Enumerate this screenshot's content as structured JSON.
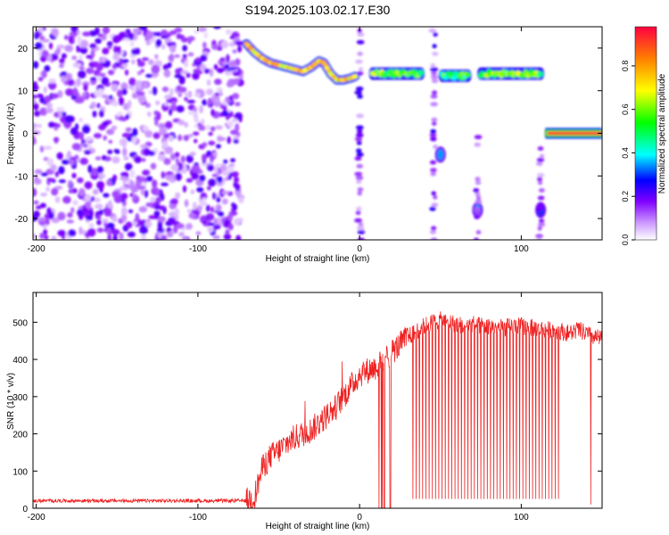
{
  "title": "S194.2025.103.02.17.E30",
  "chart_data": [
    {
      "type": "heatmap",
      "title": "S194.2025.103.02.17.E30",
      "xlabel": "Height of straight line (km)",
      "ylabel": "Frequency (Hz)",
      "xlim": [
        -202,
        150
      ],
      "ylim": [
        -25,
        25
      ],
      "xticks": [
        -200,
        -100,
        0,
        100
      ],
      "yticks": [
        -20,
        -10,
        0,
        10,
        20
      ],
      "colorbar": {
        "label": "Normalized spectral amplitude",
        "range": [
          0,
          0.98
        ],
        "ticks": [
          0.0,
          0.2,
          0.4,
          0.6,
          0.8
        ],
        "colors": [
          "#ffffff",
          "#cc99ff",
          "#8000ff",
          "#0000ff",
          "#00ffff",
          "#00ff00",
          "#ffff00",
          "#ff8000",
          "#ff0040"
        ]
      },
      "features": [
        {
          "name": "noise field",
          "x_range": [
            -202,
            -73
          ],
          "y_range": [
            -25,
            25
          ],
          "amplitude": 0.2
        },
        {
          "name": "ridge",
          "points": [
            [
              -70,
              21
            ],
            [
              -65,
              19
            ],
            [
              -60,
              17.5
            ],
            [
              -55,
              16.5
            ],
            [
              -50,
              16
            ],
            [
              -45,
              15.5
            ],
            [
              -40,
              15
            ],
            [
              -35,
              14.5
            ],
            [
              -30,
              15.5
            ],
            [
              -25,
              17
            ],
            [
              -22,
              16.5
            ],
            [
              -18,
              14
            ],
            [
              -14,
              12.5
            ],
            [
              -10,
              12.5
            ],
            [
              -5,
              13
            ],
            [
              -2,
              13.5
            ]
          ],
          "amplitude": 0.75
        },
        {
          "name": "band",
          "x_range": [
            8,
            38
          ],
          "y": 14,
          "amplitude": 0.6
        },
        {
          "name": "band",
          "x_range": [
            51,
            67
          ],
          "y": 13.5,
          "amplitude": 0.55
        },
        {
          "name": "band",
          "x_range": [
            75,
            112
          ],
          "y": 14,
          "amplitude": 0.6
        },
        {
          "name": "line",
          "x_range": [
            115,
            150
          ],
          "y": 0,
          "amplitude": 0.95
        },
        {
          "name": "blob",
          "x": 50,
          "y": -5,
          "amplitude": 0.35
        },
        {
          "name": "blob",
          "x": 73,
          "y": -18,
          "amplitude": 0.35
        },
        {
          "name": "blob",
          "x": 112,
          "y": -18,
          "amplitude": 0.3
        },
        {
          "name": "streak",
          "x": 0,
          "y_range": [
            -25,
            25
          ],
          "amplitude": 0.2
        },
        {
          "name": "streak",
          "x": 46,
          "y_range": [
            -25,
            25
          ],
          "amplitude": 0.2
        },
        {
          "name": "streak",
          "x": 73,
          "y_range": [
            -25,
            0
          ],
          "amplitude": 0.15
        },
        {
          "name": "streak",
          "x": 112,
          "y_range": [
            -25,
            0
          ],
          "amplitude": 0.15
        }
      ]
    },
    {
      "type": "line",
      "xlabel": "Height of straight line (km)",
      "ylabel": "SNR (10 * v/v)",
      "xlim": [
        -202,
        150
      ],
      "ylim": [
        0,
        580
      ],
      "xticks": [
        -200,
        -100,
        0,
        100
      ],
      "yticks": [
        0,
        100,
        200,
        300,
        400,
        500
      ],
      "color": "#ee2222",
      "x": [
        -202,
        -190,
        -180,
        -170,
        -160,
        -150,
        -140,
        -130,
        -120,
        -110,
        -100,
        -90,
        -80,
        -70,
        -65,
        -60,
        -55,
        -50,
        -45,
        -40,
        -35,
        -30,
        -25,
        -20,
        -15,
        -10,
        -5,
        0,
        5,
        10,
        15,
        20,
        25,
        30,
        35,
        40,
        45,
        50,
        55,
        60,
        65,
        70,
        75,
        80,
        85,
        90,
        95,
        100,
        105,
        110,
        115,
        120,
        125,
        130,
        135,
        140,
        145,
        150
      ],
      "y": [
        20,
        20,
        20,
        20,
        20,
        20,
        20,
        20,
        20,
        20,
        20,
        20,
        20,
        20,
        30,
        110,
        140,
        155,
        175,
        190,
        200,
        210,
        230,
        250,
        270,
        300,
        330,
        360,
        370,
        380,
        395,
        420,
        440,
        460,
        475,
        490,
        500,
        505,
        500,
        495,
        490,
        495,
        490,
        490,
        485,
        485,
        490,
        490,
        485,
        485,
        480,
        480,
        475,
        470,
        480,
        470,
        460,
        455
      ],
      "dropouts_to_zero": {
        "x_range": [
          12,
          20
        ],
        "note": ""
      },
      "periodic_dropouts": {
        "x_range": [
          33,
          123
        ],
        "period": 2,
        "min_value": 25
      }
    }
  ]
}
